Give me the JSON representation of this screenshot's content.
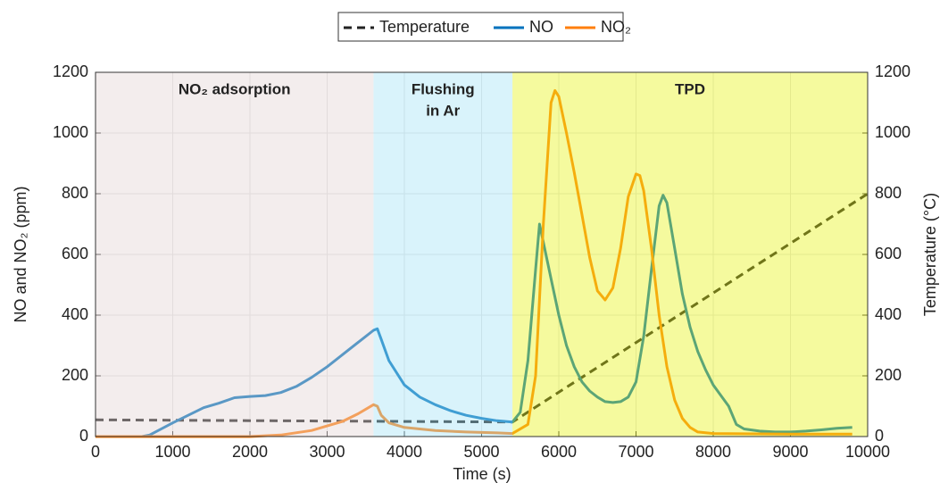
{
  "chart_data": {
    "type": "line",
    "xlabel": "Time (s)",
    "ylabel": "NO and NO₂ (ppm)",
    "y2label": "Temperature (°C)",
    "xlim": [
      0,
      10000
    ],
    "xticks": [
      0,
      1000,
      2000,
      3000,
      4000,
      5000,
      6000,
      7000,
      8000,
      9000,
      10000
    ],
    "ylim": [
      0,
      1200
    ],
    "yticks": [
      0,
      200,
      400,
      600,
      800,
      1000,
      1200
    ],
    "y2lim": [
      0,
      1200
    ],
    "y2ticks": [
      0,
      200,
      400,
      600,
      800,
      1000,
      1200
    ],
    "grid": true,
    "legend": "top",
    "regions": [
      {
        "lines": [
          "NO₂ adsorption"
        ],
        "start": 0,
        "end": 3600,
        "color": "#e1d2d2"
      },
      {
        "lines": [
          "Flushing",
          "in Ar"
        ],
        "start": 3600,
        "end": 5400,
        "color": "#a0e1f5"
      },
      {
        "lines": [
          "TPD"
        ],
        "start": 5400,
        "end": 10000,
        "color": "#e6f30d"
      }
    ],
    "series": [
      {
        "name": "Temperature",
        "color": "#222222",
        "dashed": true,
        "axis": "y2",
        "x": [
          0,
          5400,
          10000
        ],
        "values": [
          55,
          48,
          800
        ]
      },
      {
        "name": "NO",
        "color": "#0072bd",
        "x": [
          0,
          600,
          700,
          1000,
          1200,
          1400,
          1600,
          1800,
          2000,
          2200,
          2400,
          2600,
          2800,
          3000,
          3200,
          3400,
          3600,
          3650,
          3700,
          3800,
          4000,
          4200,
          4400,
          4600,
          4800,
          5000,
          5200,
          5400,
          5500,
          5600,
          5700,
          5750,
          5800,
          5900,
          6000,
          6100,
          6200,
          6300,
          6400,
          6500,
          6600,
          6700,
          6800,
          6900,
          7000,
          7100,
          7200,
          7300,
          7350,
          7400,
          7500,
          7600,
          7700,
          7800,
          7900,
          8000,
          8200,
          8300,
          8400,
          8600,
          8800,
          9000,
          9200,
          9400,
          9600,
          9800
        ],
        "values": [
          0,
          0,
          5,
          45,
          70,
          95,
          110,
          128,
          132,
          135,
          145,
          165,
          195,
          230,
          270,
          310,
          350,
          355,
          320,
          250,
          170,
          130,
          105,
          85,
          70,
          60,
          52,
          48,
          80,
          250,
          550,
          700,
          640,
          520,
          400,
          300,
          230,
          180,
          150,
          130,
          115,
          112,
          115,
          130,
          180,
          330,
          550,
          760,
          795,
          770,
          620,
          470,
          360,
          280,
          220,
          170,
          100,
          40,
          25,
          18,
          15,
          15,
          18,
          22,
          27,
          30
        ]
      },
      {
        "name": "NO₂",
        "color": "#ff7f0e",
        "x": [
          0,
          2000,
          2400,
          2800,
          3000,
          3200,
          3400,
          3600,
          3650,
          3700,
          3800,
          4000,
          4400,
          4800,
          5200,
          5400,
          5600,
          5700,
          5800,
          5900,
          5950,
          6000,
          6100,
          6200,
          6300,
          6400,
          6500,
          6600,
          6700,
          6800,
          6900,
          7000,
          7050,
          7100,
          7200,
          7300,
          7400,
          7500,
          7600,
          7700,
          7800,
          8000,
          9000,
          9800
        ],
        "values": [
          0,
          0,
          5,
          20,
          35,
          50,
          75,
          105,
          100,
          70,
          45,
          30,
          20,
          15,
          12,
          10,
          40,
          200,
          700,
          1100,
          1140,
          1120,
          1000,
          870,
          730,
          590,
          480,
          450,
          490,
          620,
          790,
          865,
          860,
          810,
          620,
          400,
          230,
          120,
          60,
          30,
          15,
          10,
          8,
          8
        ]
      }
    ]
  }
}
